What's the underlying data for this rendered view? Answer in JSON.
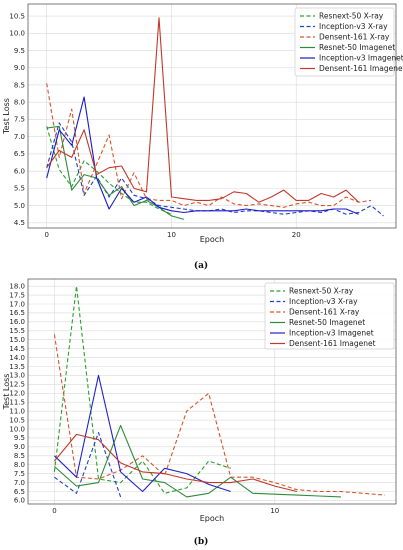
{
  "chart_data": [
    {
      "type": "line",
      "caption": "(a)",
      "xlabel": "Epoch",
      "ylabel": "Test Loss",
      "xlim": [
        -1.5,
        28
      ],
      "ylim": [
        4.35,
        10.85
      ],
      "xticks": [
        0,
        10,
        20
      ],
      "yticks": [
        4.5,
        5.0,
        5.5,
        6.0,
        6.5,
        7.0,
        7.5,
        8.0,
        8.5,
        9.0,
        9.5,
        10.0,
        10.5
      ],
      "grid": true,
      "legend": "top-right",
      "series": [
        {
          "name": "Resnext-50 X-ray",
          "color": "#2ca02c",
          "dash": true,
          "x": [
            0,
            1,
            2,
            3,
            4,
            5,
            6,
            7,
            8,
            9,
            10
          ],
          "y": [
            7.3,
            6.05,
            5.55,
            6.3,
            6.0,
            5.65,
            5.35,
            5.1,
            5.1,
            4.9,
            4.75
          ]
        },
        {
          "name": "Inception-v3 X-ray",
          "color": "#1f3fc4",
          "dash": true,
          "x": [
            0,
            1,
            2,
            3,
            4,
            5,
            6,
            7,
            8,
            9,
            10,
            11,
            12,
            13,
            14,
            15,
            16,
            17,
            18,
            19,
            20,
            21,
            22,
            23,
            24,
            25,
            26,
            27
          ],
          "y": [
            6.1,
            7.4,
            6.85,
            5.3,
            5.85,
            5.25,
            5.8,
            5.3,
            5.2,
            5.0,
            4.95,
            4.9,
            4.85,
            4.85,
            4.9,
            4.8,
            4.85,
            4.85,
            4.8,
            4.75,
            4.8,
            4.85,
            4.8,
            4.9,
            4.75,
            4.8,
            5.0,
            4.7
          ]
        },
        {
          "name": "Densent-161 X-ray",
          "color": "#d9542a",
          "dash": true,
          "x": [
            0,
            1,
            2,
            3,
            4,
            5,
            6,
            7,
            8,
            9,
            10,
            11,
            12,
            13,
            14,
            15,
            16,
            17,
            18,
            19,
            20,
            21,
            22,
            23,
            24,
            25,
            26
          ],
          "y": [
            8.55,
            6.4,
            7.8,
            5.35,
            6.2,
            7.05,
            5.2,
            5.95,
            5.2,
            5.15,
            5.15,
            5.0,
            5.1,
            5.0,
            5.25,
            5.05,
            5.0,
            5.05,
            5.0,
            4.95,
            5.05,
            5.1,
            5.0,
            5.0,
            5.25,
            5.1,
            5.15
          ]
        },
        {
          "name": "Resnet-50 Imagenet",
          "color": "#2e8b3a",
          "dash": false,
          "x": [
            0,
            1,
            2,
            3,
            4,
            5,
            6,
            7,
            8,
            9,
            10,
            11
          ],
          "y": [
            7.25,
            7.3,
            5.45,
            5.9,
            5.8,
            5.3,
            5.55,
            5.0,
            5.15,
            4.95,
            4.7,
            4.6
          ]
        },
        {
          "name": "Inception-v3 Imagenet",
          "color": "#1a1acc",
          "dash": false,
          "x": [
            0,
            1,
            2,
            3,
            4,
            5,
            6,
            7,
            8,
            9,
            10,
            11,
            12,
            13,
            14,
            15,
            16,
            17,
            18,
            19,
            20,
            21,
            22,
            23,
            24,
            25
          ],
          "y": [
            5.8,
            7.2,
            6.75,
            8.15,
            5.8,
            4.9,
            5.5,
            5.1,
            5.25,
            4.95,
            4.85,
            4.8,
            4.85,
            4.85,
            4.85,
            4.85,
            4.9,
            4.85,
            4.85,
            4.85,
            4.85,
            4.85,
            4.85,
            4.9,
            4.9,
            4.75
          ]
        },
        {
          "name": "Densent-161 Imagenet",
          "color": "#c0392b",
          "dash": false,
          "x": [
            0,
            1,
            2,
            3,
            4,
            5,
            6,
            7,
            8,
            9,
            10,
            11,
            12,
            13,
            14,
            15,
            16,
            17,
            18,
            19,
            20,
            21,
            22,
            23,
            24,
            25
          ],
          "y": [
            6.1,
            6.6,
            6.4,
            7.2,
            5.9,
            6.1,
            6.15,
            5.5,
            5.4,
            10.45,
            5.25,
            5.2,
            5.15,
            5.15,
            5.2,
            5.4,
            5.35,
            5.1,
            5.25,
            5.45,
            5.15,
            5.15,
            5.35,
            5.25,
            5.45,
            5.1
          ]
        }
      ]
    },
    {
      "type": "line",
      "caption": "(b)",
      "xlabel": "Epoch",
      "ylabel": "Test Loss",
      "xlim": [
        -1.2,
        15.5
      ],
      "ylim": [
        5.8,
        18.4
      ],
      "xticks": [
        0,
        10
      ],
      "yticks": [
        6.0,
        6.5,
        7.0,
        7.5,
        8.0,
        8.5,
        9.0,
        9.5,
        10.0,
        10.5,
        11.0,
        11.5,
        12.0,
        12.5,
        13.0,
        13.5,
        14.0,
        14.5,
        15.0,
        15.5,
        16.0,
        16.5,
        17.0,
        17.5,
        18.0
      ],
      "grid": true,
      "legend": "top-right",
      "series": [
        {
          "name": "Resnext-50 X-ray",
          "color": "#2ca02c",
          "dash": true,
          "x": [
            0,
            1,
            2,
            3,
            4,
            5,
            6,
            7,
            8
          ],
          "y": [
            7.6,
            18.0,
            7.2,
            7.0,
            8.2,
            6.4,
            6.7,
            8.2,
            7.8
          ]
        },
        {
          "name": "Inception-v3 X-ray",
          "color": "#1f3fc4",
          "dash": true,
          "x": [
            0,
            1,
            2,
            3
          ],
          "y": [
            7.3,
            6.4,
            9.8,
            6.2
          ]
        },
        {
          "name": "Densent-161 X-ray",
          "color": "#d9542a",
          "dash": true,
          "x": [
            0,
            1,
            2,
            3,
            4,
            5,
            6,
            7,
            8,
            9,
            10,
            11,
            12,
            13,
            14,
            15
          ],
          "y": [
            15.3,
            7.3,
            7.2,
            7.7,
            8.5,
            7.4,
            11.0,
            12.0,
            7.3,
            7.3,
            7.0,
            6.6,
            6.5,
            6.5,
            6.4,
            6.3
          ]
        },
        {
          "name": "Resnet-50 Imagenet",
          "color": "#2e8b3a",
          "dash": false,
          "x": [
            0,
            1,
            2,
            3,
            4,
            5,
            6,
            7,
            8,
            9,
            10,
            11,
            12,
            13
          ],
          "y": [
            7.9,
            6.8,
            7.0,
            10.2,
            7.2,
            7.0,
            6.2,
            6.4,
            7.3,
            6.4,
            6.35,
            6.3,
            6.25,
            6.2
          ]
        },
        {
          "name": "Inception-v3 Imagenet",
          "color": "#2222cc",
          "dash": false,
          "x": [
            0,
            1,
            2,
            3,
            4,
            5,
            6,
            7,
            8
          ],
          "y": [
            8.5,
            7.3,
            13.0,
            7.6,
            6.5,
            7.8,
            7.5,
            6.9,
            6.5
          ]
        },
        {
          "name": "Densent-161 Imagenet",
          "color": "#c0392b",
          "dash": false,
          "x": [
            0,
            1,
            2,
            3,
            4,
            5,
            6,
            7,
            8,
            9,
            10,
            11
          ],
          "y": [
            8.2,
            9.7,
            9.4,
            8.1,
            7.6,
            7.5,
            7.2,
            7.0,
            7.0,
            7.2,
            6.8,
            6.5
          ]
        }
      ]
    }
  ]
}
